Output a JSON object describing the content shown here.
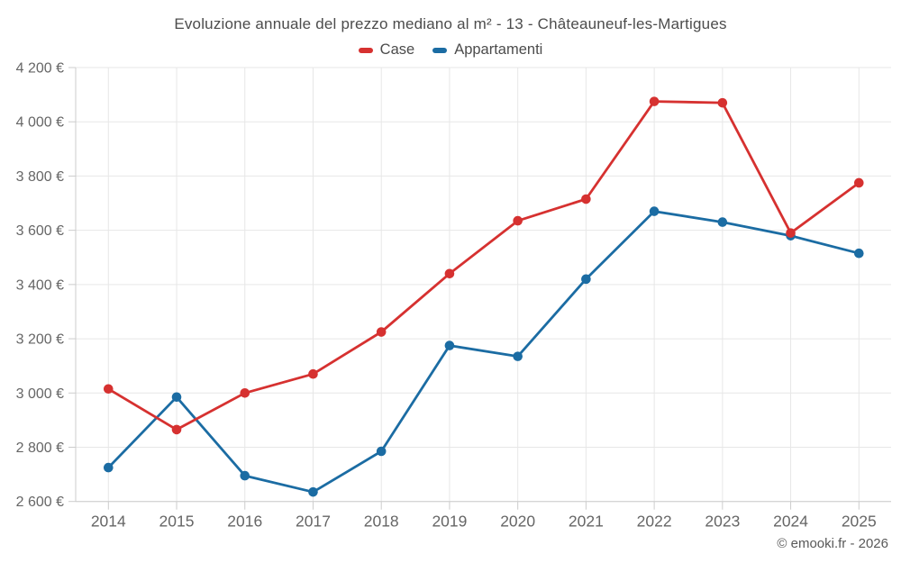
{
  "title": "Evoluzione annuale del prezzo mediano al m² - 13 - Châteauneuf-les-Martigues",
  "legend": [
    {
      "label": "Case",
      "color": "#d63130"
    },
    {
      "label": "Appartamenti",
      "color": "#1b6ca3"
    }
  ],
  "footer": "© emooki.fr - 2026",
  "chart_data": {
    "type": "line",
    "title": "Evoluzione annuale del prezzo mediano al m² - 13 - Châteauneuf-les-Martigues",
    "x": [
      2014,
      2015,
      2016,
      2017,
      2018,
      2019,
      2020,
      2021,
      2022,
      2023,
      2024,
      2025
    ],
    "series": [
      {
        "name": "Case",
        "color": "#d63130",
        "values": [
          3015,
          2865,
          3000,
          3070,
          3225,
          3440,
          3635,
          3715,
          4075,
          4070,
          3590,
          3775
        ]
      },
      {
        "name": "Appartamenti",
        "color": "#1b6ca3",
        "values": [
          2725,
          2985,
          2695,
          2635,
          2785,
          3175,
          3135,
          3420,
          3670,
          3630,
          3580,
          3515
        ]
      }
    ],
    "ylim": [
      2600,
      4200
    ],
    "ytick_step": 200,
    "ytick_labels": [
      "2 600 €",
      "2 800 €",
      "3 000 €",
      "3 200 €",
      "3 400 €",
      "3 600 €",
      "3 800 €",
      "4 000 €",
      "4 200 €"
    ],
    "xlabel": "",
    "ylabel": "",
    "grid": true,
    "legend_position": "top",
    "currency": "€"
  },
  "colors": {
    "grid": "#e7e7e7",
    "axis": "#cccccc",
    "tick_label": "#666666",
    "title_text": "#4c4c4c"
  }
}
